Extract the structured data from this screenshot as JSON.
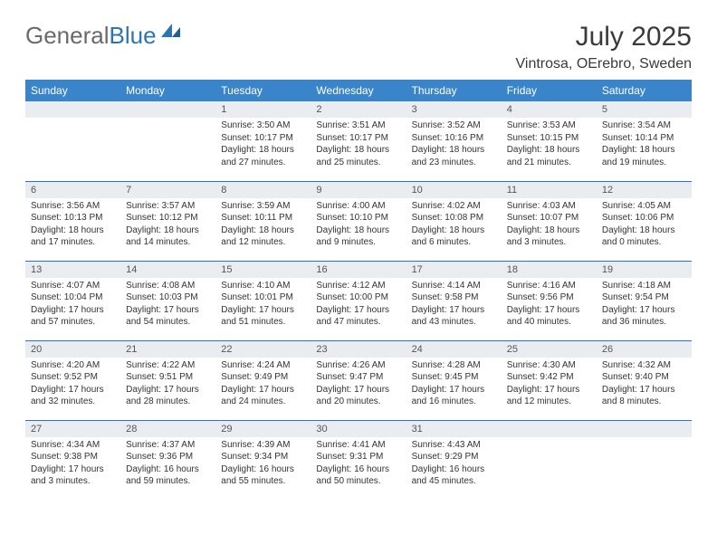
{
  "brand": {
    "part1": "General",
    "part2": "Blue"
  },
  "title": "July 2025",
  "subtitle": "Vintrosa, OErebro, Sweden",
  "colors": {
    "header_bg": "#3a85c9",
    "header_text": "#ffffff",
    "daynum_bg": "#e9edf1",
    "rule": "#2d74b6",
    "text": "#333333",
    "title_text": "#3a3a3a",
    "brand_gray": "#6a6a6a",
    "brand_blue": "#2d74b6"
  },
  "columns": [
    "Sunday",
    "Monday",
    "Tuesday",
    "Wednesday",
    "Thursday",
    "Friday",
    "Saturday"
  ],
  "weeks": [
    [
      {
        "n": "",
        "lines": []
      },
      {
        "n": "",
        "lines": []
      },
      {
        "n": "1",
        "lines": [
          "Sunrise: 3:50 AM",
          "Sunset: 10:17 PM",
          "Daylight: 18 hours and 27 minutes."
        ]
      },
      {
        "n": "2",
        "lines": [
          "Sunrise: 3:51 AM",
          "Sunset: 10:17 PM",
          "Daylight: 18 hours and 25 minutes."
        ]
      },
      {
        "n": "3",
        "lines": [
          "Sunrise: 3:52 AM",
          "Sunset: 10:16 PM",
          "Daylight: 18 hours and 23 minutes."
        ]
      },
      {
        "n": "4",
        "lines": [
          "Sunrise: 3:53 AM",
          "Sunset: 10:15 PM",
          "Daylight: 18 hours and 21 minutes."
        ]
      },
      {
        "n": "5",
        "lines": [
          "Sunrise: 3:54 AM",
          "Sunset: 10:14 PM",
          "Daylight: 18 hours and 19 minutes."
        ]
      }
    ],
    [
      {
        "n": "6",
        "lines": [
          "Sunrise: 3:56 AM",
          "Sunset: 10:13 PM",
          "Daylight: 18 hours and 17 minutes."
        ]
      },
      {
        "n": "7",
        "lines": [
          "Sunrise: 3:57 AM",
          "Sunset: 10:12 PM",
          "Daylight: 18 hours and 14 minutes."
        ]
      },
      {
        "n": "8",
        "lines": [
          "Sunrise: 3:59 AM",
          "Sunset: 10:11 PM",
          "Daylight: 18 hours and 12 minutes."
        ]
      },
      {
        "n": "9",
        "lines": [
          "Sunrise: 4:00 AM",
          "Sunset: 10:10 PM",
          "Daylight: 18 hours and 9 minutes."
        ]
      },
      {
        "n": "10",
        "lines": [
          "Sunrise: 4:02 AM",
          "Sunset: 10:08 PM",
          "Daylight: 18 hours and 6 minutes."
        ]
      },
      {
        "n": "11",
        "lines": [
          "Sunrise: 4:03 AM",
          "Sunset: 10:07 PM",
          "Daylight: 18 hours and 3 minutes."
        ]
      },
      {
        "n": "12",
        "lines": [
          "Sunrise: 4:05 AM",
          "Sunset: 10:06 PM",
          "Daylight: 18 hours and 0 minutes."
        ]
      }
    ],
    [
      {
        "n": "13",
        "lines": [
          "Sunrise: 4:07 AM",
          "Sunset: 10:04 PM",
          "Daylight: 17 hours and 57 minutes."
        ]
      },
      {
        "n": "14",
        "lines": [
          "Sunrise: 4:08 AM",
          "Sunset: 10:03 PM",
          "Daylight: 17 hours and 54 minutes."
        ]
      },
      {
        "n": "15",
        "lines": [
          "Sunrise: 4:10 AM",
          "Sunset: 10:01 PM",
          "Daylight: 17 hours and 51 minutes."
        ]
      },
      {
        "n": "16",
        "lines": [
          "Sunrise: 4:12 AM",
          "Sunset: 10:00 PM",
          "Daylight: 17 hours and 47 minutes."
        ]
      },
      {
        "n": "17",
        "lines": [
          "Sunrise: 4:14 AM",
          "Sunset: 9:58 PM",
          "Daylight: 17 hours and 43 minutes."
        ]
      },
      {
        "n": "18",
        "lines": [
          "Sunrise: 4:16 AM",
          "Sunset: 9:56 PM",
          "Daylight: 17 hours and 40 minutes."
        ]
      },
      {
        "n": "19",
        "lines": [
          "Sunrise: 4:18 AM",
          "Sunset: 9:54 PM",
          "Daylight: 17 hours and 36 minutes."
        ]
      }
    ],
    [
      {
        "n": "20",
        "lines": [
          "Sunrise: 4:20 AM",
          "Sunset: 9:52 PM",
          "Daylight: 17 hours and 32 minutes."
        ]
      },
      {
        "n": "21",
        "lines": [
          "Sunrise: 4:22 AM",
          "Sunset: 9:51 PM",
          "Daylight: 17 hours and 28 minutes."
        ]
      },
      {
        "n": "22",
        "lines": [
          "Sunrise: 4:24 AM",
          "Sunset: 9:49 PM",
          "Daylight: 17 hours and 24 minutes."
        ]
      },
      {
        "n": "23",
        "lines": [
          "Sunrise: 4:26 AM",
          "Sunset: 9:47 PM",
          "Daylight: 17 hours and 20 minutes."
        ]
      },
      {
        "n": "24",
        "lines": [
          "Sunrise: 4:28 AM",
          "Sunset: 9:45 PM",
          "Daylight: 17 hours and 16 minutes."
        ]
      },
      {
        "n": "25",
        "lines": [
          "Sunrise: 4:30 AM",
          "Sunset: 9:42 PM",
          "Daylight: 17 hours and 12 minutes."
        ]
      },
      {
        "n": "26",
        "lines": [
          "Sunrise: 4:32 AM",
          "Sunset: 9:40 PM",
          "Daylight: 17 hours and 8 minutes."
        ]
      }
    ],
    [
      {
        "n": "27",
        "lines": [
          "Sunrise: 4:34 AM",
          "Sunset: 9:38 PM",
          "Daylight: 17 hours and 3 minutes."
        ]
      },
      {
        "n": "28",
        "lines": [
          "Sunrise: 4:37 AM",
          "Sunset: 9:36 PM",
          "Daylight: 16 hours and 59 minutes."
        ]
      },
      {
        "n": "29",
        "lines": [
          "Sunrise: 4:39 AM",
          "Sunset: 9:34 PM",
          "Daylight: 16 hours and 55 minutes."
        ]
      },
      {
        "n": "30",
        "lines": [
          "Sunrise: 4:41 AM",
          "Sunset: 9:31 PM",
          "Daylight: 16 hours and 50 minutes."
        ]
      },
      {
        "n": "31",
        "lines": [
          "Sunrise: 4:43 AM",
          "Sunset: 9:29 PM",
          "Daylight: 16 hours and 45 minutes."
        ]
      },
      {
        "n": "",
        "lines": []
      },
      {
        "n": "",
        "lines": []
      }
    ]
  ]
}
